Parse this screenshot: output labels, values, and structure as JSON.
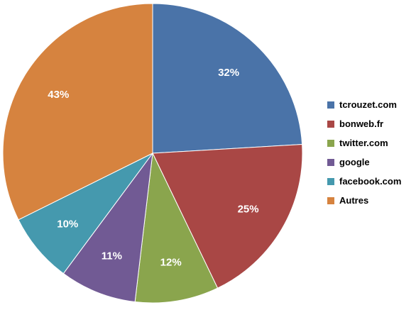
{
  "chart_data": {
    "type": "pie",
    "title": "",
    "labels": [
      "tcrouzet.com",
      "bonweb.fr",
      "twitter.com",
      "google",
      "facebook.com",
      "Autres"
    ],
    "values": [
      32,
      25,
      12,
      11,
      10,
      43
    ],
    "value_labels": [
      "32%",
      "25%",
      "12%",
      "11%",
      "10%",
      "43%"
    ],
    "colors": [
      "#4A73A8",
      "#A94745",
      "#8AA54D",
      "#715A94",
      "#4599AE",
      "#D6833F"
    ],
    "legend_position": "right",
    "start_angle": "12 o'clock",
    "direction": "clockwise"
  }
}
